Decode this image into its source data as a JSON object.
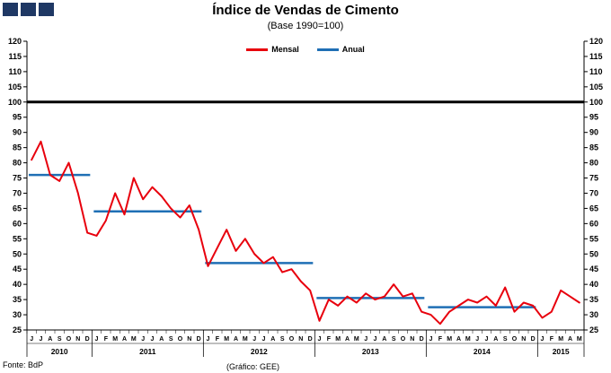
{
  "logo": {
    "color": "#1f3864",
    "squares": 3
  },
  "legend": {
    "items": [
      {
        "label": "Mensal",
        "color": "#e8000d"
      },
      {
        "label": "Anual",
        "color": "#1f6fb5"
      }
    ]
  },
  "footer": {
    "source": "Fonte: BdP",
    "credit": "(Gráfico: GEE)"
  },
  "chart_data": {
    "type": "line",
    "title": "Índice de Vendas de Cimento",
    "subtitle": "(Base 1990=100)",
    "ylabel": "",
    "xlabel": "",
    "ylim": [
      25,
      120
    ],
    "ytick_step": 5,
    "grid": false,
    "legend_position": "top-center",
    "reference_line": {
      "value": 100,
      "color": "#000000"
    },
    "years": [
      {
        "label": "2010",
        "months": [
          "J",
          "J",
          "A",
          "S",
          "O",
          "N",
          "D"
        ],
        "mensal": [
          81,
          87,
          76,
          74,
          80,
          70,
          57
        ],
        "anual": 76
      },
      {
        "label": "2011",
        "months": [
          "J",
          "F",
          "M",
          "A",
          "M",
          "J",
          "J",
          "A",
          "S",
          "O",
          "N",
          "D"
        ],
        "mensal": [
          56,
          61,
          70,
          63,
          75,
          68,
          72,
          69,
          65,
          62,
          66,
          58
        ],
        "anual": 64
      },
      {
        "label": "2012",
        "months": [
          "J",
          "F",
          "M",
          "A",
          "M",
          "J",
          "J",
          "A",
          "S",
          "O",
          "N",
          "D"
        ],
        "mensal": [
          46,
          52,
          58,
          51,
          55,
          50,
          47,
          49,
          44,
          45,
          41,
          38
        ],
        "anual": 47
      },
      {
        "label": "2013",
        "months": [
          "J",
          "F",
          "M",
          "A",
          "M",
          "J",
          "J",
          "A",
          "S",
          "O",
          "N",
          "D"
        ],
        "mensal": [
          28,
          35,
          33,
          36,
          34,
          37,
          35,
          36,
          40,
          36,
          37,
          31
        ],
        "anual": 35.5
      },
      {
        "label": "2014",
        "months": [
          "J",
          "F",
          "M",
          "A",
          "M",
          "J",
          "J",
          "A",
          "S",
          "O",
          "N",
          "D"
        ],
        "mensal": [
          30,
          27,
          31,
          33,
          35,
          34,
          36,
          33,
          39,
          31,
          34,
          33
        ],
        "anual": 32.5
      },
      {
        "label": "2015",
        "months": [
          "J",
          "F",
          "M",
          "A",
          "M"
        ],
        "mensal": [
          29,
          31,
          38,
          36,
          34
        ],
        "anual": null
      }
    ],
    "series_names": [
      "Mensal",
      "Anual"
    ]
  }
}
